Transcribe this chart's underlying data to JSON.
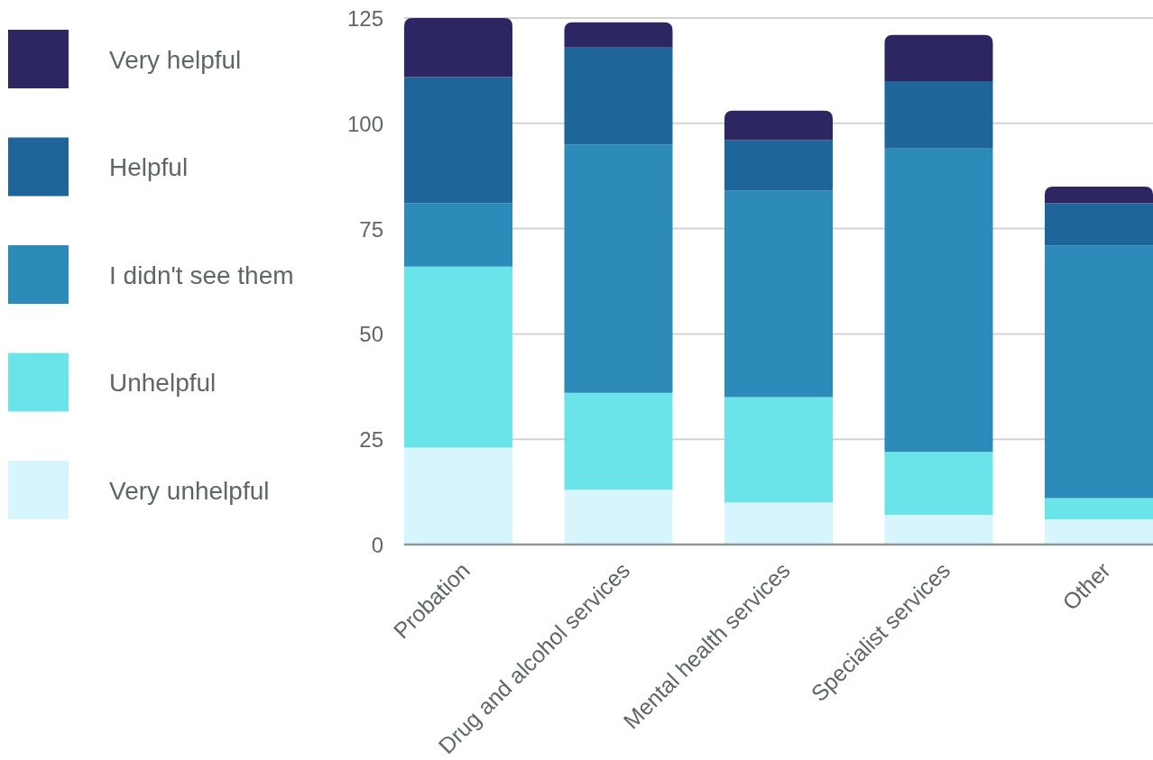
{
  "chart_data": {
    "type": "bar",
    "stacked": true,
    "categories": [
      "Probation",
      "Drug and alcohol services",
      "Mental health services",
      "Specialist services",
      "Other"
    ],
    "series": [
      {
        "name": "Very unhelpful",
        "color": "#d7f5fd",
        "values": [
          23,
          13,
          10,
          7,
          6
        ]
      },
      {
        "name": "Unhelpful",
        "color": "#6ae4e8",
        "values": [
          43,
          23,
          25,
          15,
          5
        ]
      },
      {
        "name": "I didn't see them",
        "color": "#2d8bba",
        "values": [
          15,
          59,
          49,
          72,
          60
        ]
      },
      {
        "name": "Helpful",
        "color": "#1e6599",
        "values": [
          30,
          23,
          12,
          16,
          10
        ]
      },
      {
        "name": "Very helpful",
        "color": "#2c2662",
        "values": [
          14,
          6,
          7,
          11,
          4
        ]
      }
    ],
    "ylim": [
      0,
      125
    ],
    "yticks": [
      0,
      25,
      50,
      75,
      100,
      125
    ],
    "grid": "y",
    "legend": "left"
  }
}
